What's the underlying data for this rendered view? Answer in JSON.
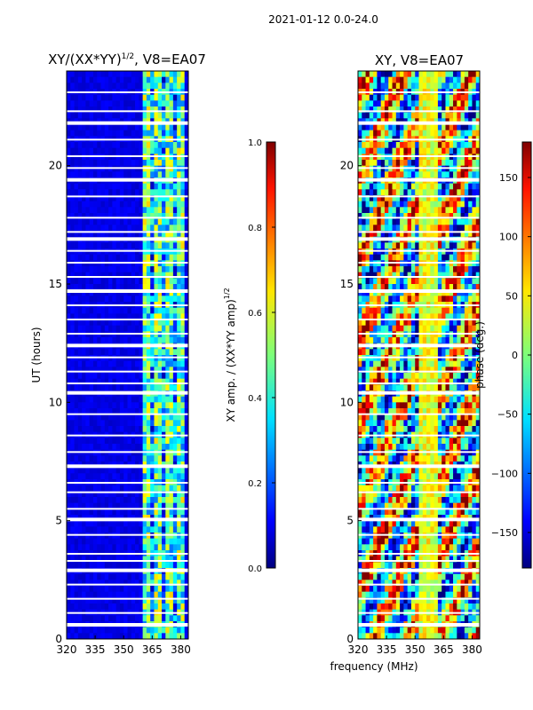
{
  "figure": {
    "suptitle": "2021-01-12 0.0-24.0",
    "xlabel": "frequency (MHz)"
  },
  "chart_data": [
    {
      "type": "heatmap",
      "title": "XY/(XX*YY)",
      "title_sup": "1/2",
      "title_suffix": ", V8=EA07",
      "xlabel": "",
      "ylabel": "UT (hours)",
      "xlim": [
        320,
        384
      ],
      "ylim": [
        0,
        24
      ],
      "xticks": [
        320,
        335,
        350,
        365,
        380
      ],
      "xtick_labels": [
        "320",
        "335",
        "350",
        "365",
        "380"
      ],
      "yticks": [
        0,
        5,
        10,
        15,
        20
      ],
      "ytick_labels": [
        "0",
        "5",
        "10",
        "15",
        "20"
      ],
      "colorbar": {
        "label": "XY amp. / (XX*YY amp)",
        "label_sup": "1/2",
        "range": [
          0.0,
          1.0
        ],
        "ticks": [
          0.0,
          0.2,
          0.4,
          0.6,
          0.8,
          1.0
        ],
        "tick_labels": [
          "0.0",
          "0.2",
          "0.4",
          "0.6",
          "0.8",
          "1.0"
        ],
        "colormap": "jet"
      },
      "bands": [
        {
          "from": 320,
          "to": 361,
          "level": 0.1
        },
        {
          "from": 361,
          "to": 382,
          "level": 0.45
        }
      ]
    },
    {
      "type": "heatmap",
      "title": "XY, V8=EA07",
      "xlabel": "",
      "ylabel": "",
      "xlim": [
        320,
        384
      ],
      "ylim": [
        0,
        24
      ],
      "xticks": [
        320,
        335,
        350,
        365,
        380
      ],
      "xtick_labels": [
        "320",
        "335",
        "350",
        "365",
        "380"
      ],
      "yticks": [
        0,
        5,
        10,
        15,
        20
      ],
      "ytick_labels": [
        "0",
        "5",
        "10",
        "15",
        "20"
      ],
      "colorbar": {
        "label": "phase (deg.)",
        "range": [
          -180,
          180
        ],
        "ticks": [
          -150,
          -100,
          -50,
          0,
          50,
          100,
          150
        ],
        "tick_labels": [
          "−150",
          "−100",
          "−50",
          "0",
          "50",
          "100",
          "150"
        ],
        "colormap": "jet"
      }
    }
  ]
}
